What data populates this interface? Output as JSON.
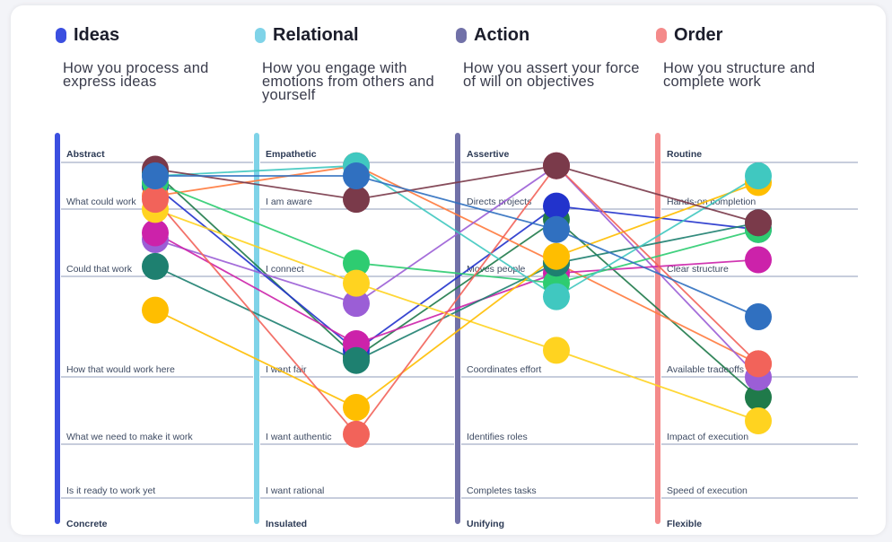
{
  "columns": [
    {
      "name": "Ideas",
      "description": "How you process and express ideas",
      "color": "#3b4fe0",
      "top": "Abstract",
      "bottom": "Concrete",
      "levels": [
        "What could work",
        "Could that work",
        "How that would work here",
        "What we need to make it work",
        "Is it ready to work yet"
      ]
    },
    {
      "name": "Relational",
      "description": "How you engage with emotions from others and yourself",
      "color": "#7fd3e8",
      "top": "Empathetic",
      "bottom": "Insulated",
      "levels": [
        "I am aware",
        "I connect",
        "I want fair",
        "I want authentic",
        "I want rational"
      ]
    },
    {
      "name": "Action",
      "description": "How you assert your force of will on objectives",
      "color": "#7171a8",
      "top": "Assertive",
      "bottom": "Unifying",
      "levels": [
        "Directs projects",
        "Moves people",
        "Coordinates effort",
        "Identifies roles",
        "Completes tasks"
      ]
    },
    {
      "name": "Order",
      "description": "How you structure and complete work",
      "color": "#f48a8a",
      "top": "Routine",
      "bottom": "Flexible",
      "levels": [
        "Hands-on completion",
        "Clear structure",
        "Available tradeoffs",
        "Impact of execution",
        "Speed of execution"
      ]
    }
  ],
  "chart_data": {
    "type": "line",
    "x": [
      "Ideas",
      "Relational",
      "Action",
      "Order"
    ],
    "y_scale": "Abstract / Empathetic / Assertive / Routine (top) to Concrete / Insulated / Unifying / Flexible (bottom)",
    "series": [
      {
        "color": "#1f7a4a",
        "values": [
          0.03,
          0.58,
          0.17,
          0.7
        ]
      },
      {
        "color": "#2233cc",
        "values": [
          0.07,
          0.56,
          0.13,
          0.2
        ]
      },
      {
        "color": "#ff7a3d",
        "values": [
          0.1,
          0.01,
          0.3,
          0.6
        ]
      },
      {
        "color": "#9b5ed6",
        "values": [
          0.23,
          0.42,
          0.01,
          0.64
        ]
      },
      {
        "color": "#cc22aa",
        "values": [
          0.21,
          0.54,
          0.33,
          0.29
        ]
      },
      {
        "color": "#2ecc71",
        "values": [
          0.06,
          0.3,
          0.36,
          0.2
        ]
      },
      {
        "color": "#1e8070",
        "values": [
          0.31,
          0.59,
          0.3,
          0.18
        ]
      },
      {
        "color": "#ffd320",
        "values": [
          0.14,
          0.36,
          0.56,
          0.77
        ]
      },
      {
        "color": "#ffbe00",
        "values": [
          0.44,
          0.73,
          0.28,
          0.06
        ]
      },
      {
        "color": "#f2635a",
        "values": [
          0.11,
          0.81,
          0.01,
          0.6
        ]
      },
      {
        "color": "#40c8c0",
        "values": [
          0.04,
          0.01,
          0.4,
          0.04
        ]
      },
      {
        "color": "#7a3a4a",
        "values": [
          0.02,
          0.11,
          0.01,
          0.18
        ]
      },
      {
        "color": "#3070c0",
        "values": [
          0.04,
          0.04,
          0.2,
          0.46
        ]
      }
    ]
  }
}
